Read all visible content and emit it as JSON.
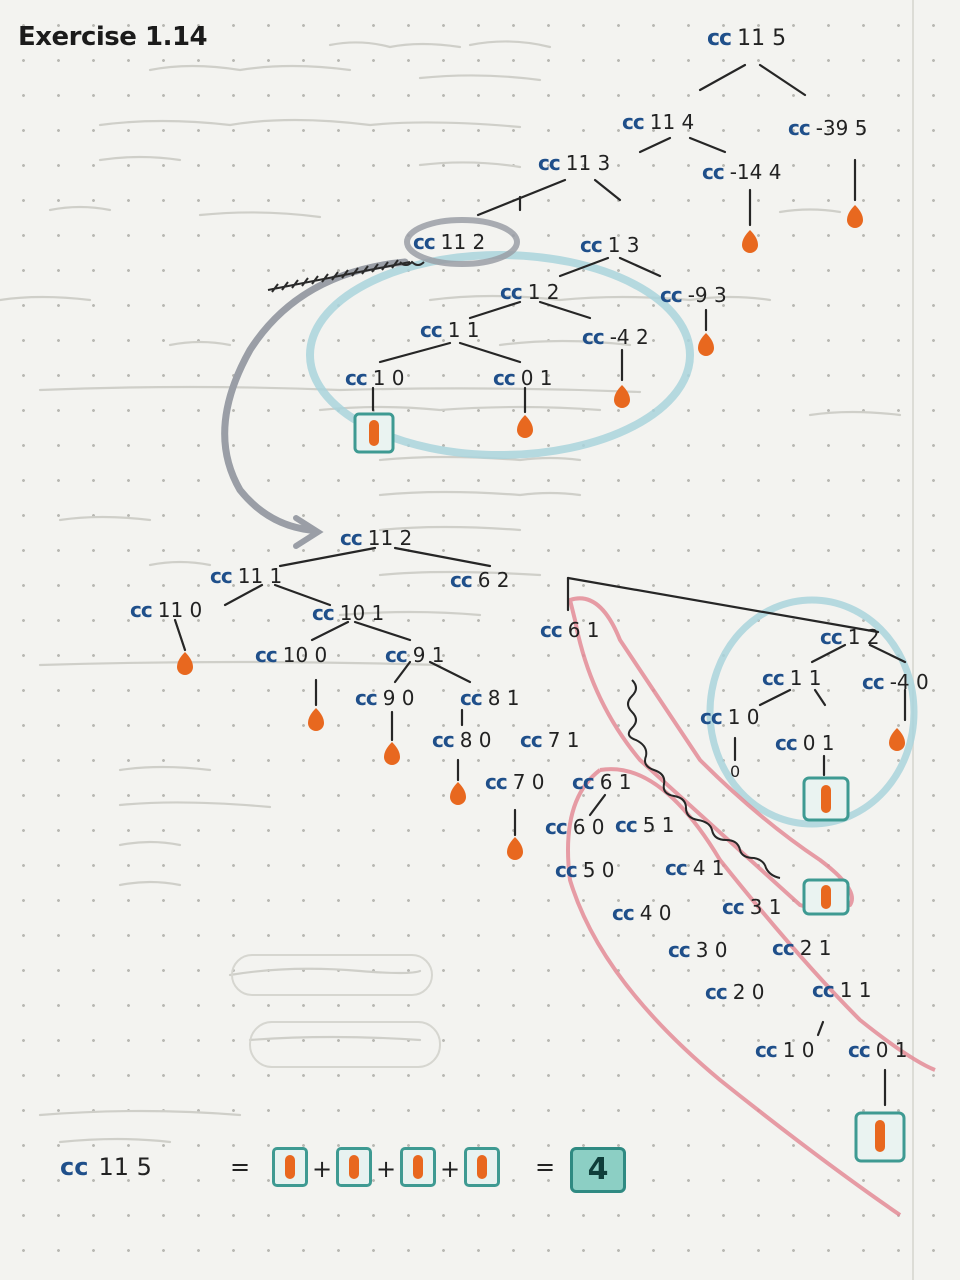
{
  "heading": "Exercise 1.14",
  "nodes": {
    "n_cc115": {
      "fn": "cc",
      "args": "11  5"
    },
    "n_cc114": {
      "fn": "cc",
      "args": "11  4"
    },
    "n_cc395": {
      "fn": "cc",
      "args": "-39  5"
    },
    "n_cc113": {
      "fn": "cc",
      "args": "11  3"
    },
    "n_cc144": {
      "fn": "cc",
      "args": "-14  4"
    },
    "n_cc112a": {
      "fn": "cc",
      "args": "11  2"
    },
    "n_cc13": {
      "fn": "cc",
      "args": "1  3"
    },
    "n_cc12": {
      "fn": "cc",
      "args": "1  2"
    },
    "n_cc93": {
      "fn": "cc",
      "args": "-9  3"
    },
    "n_cc11a": {
      "fn": "cc",
      "args": "1  1"
    },
    "n_cc42": {
      "fn": "cc",
      "args": "-4  2"
    },
    "n_cc10a": {
      "fn": "cc",
      "args": "1  0"
    },
    "n_cc01a": {
      "fn": "cc",
      "args": "0  1"
    },
    "n_cc112b": {
      "fn": "cc",
      "args": "11  2"
    },
    "n_cc111": {
      "fn": "cc",
      "args": "11  1"
    },
    "n_cc62": {
      "fn": "cc",
      "args": "6  2"
    },
    "n_cc110": {
      "fn": "cc",
      "args": "11  0"
    },
    "n_cc101": {
      "fn": "cc",
      "args": "10  1"
    },
    "n_cc61": {
      "fn": "cc",
      "args": "6  1"
    },
    "n_cc12b": {
      "fn": "cc",
      "args": "1  2"
    },
    "n_cc100": {
      "fn": "cc",
      "args": "10  0"
    },
    "n_cc91": {
      "fn": "cc",
      "args": "9  1"
    },
    "n_cc11b": {
      "fn": "cc",
      "args": "1  1"
    },
    "n_cc40": {
      "fn": "cc",
      "args": "-4  0"
    },
    "n_cc90": {
      "fn": "cc",
      "args": "9  0"
    },
    "n_cc81": {
      "fn": "cc",
      "args": "8  1"
    },
    "n_cc10b": {
      "fn": "cc",
      "args": "1  0"
    },
    "n_cc01b": {
      "fn": "cc",
      "args": "0  1"
    },
    "n_cc80": {
      "fn": "cc",
      "args": "8  0"
    },
    "n_cc71": {
      "fn": "cc",
      "args": "7  1"
    },
    "n_cc70": {
      "fn": "cc",
      "args": "7  0"
    },
    "n_cc61b": {
      "fn": "cc",
      "args": "6  1"
    },
    "n_cc60": {
      "fn": "cc",
      "args": "6  0"
    },
    "n_cc51": {
      "fn": "cc",
      "args": "5  1"
    },
    "n_cc50": {
      "fn": "cc",
      "args": "5  0"
    },
    "n_cc41": {
      "fn": "cc",
      "args": "4  1"
    },
    "n_cc40b": {
      "fn": "cc",
      "args": "4  0"
    },
    "n_cc31": {
      "fn": "cc",
      "args": "3  1"
    },
    "n_cc30": {
      "fn": "cc",
      "args": "3  0"
    },
    "n_cc21": {
      "fn": "cc",
      "args": "2  1"
    },
    "n_cc20": {
      "fn": "cc",
      "args": "2  0"
    },
    "n_cc11c": {
      "fn": "cc",
      "args": "1  1"
    },
    "n_cc10c": {
      "fn": "cc",
      "args": "1  0"
    },
    "n_cc01c": {
      "fn": "cc",
      "args": "0  1"
    }
  },
  "small_zero": "0",
  "equation": {
    "lhs_fn": "cc",
    "lhs_args": "11  5",
    "equals": "=",
    "plus": "+",
    "result": "4"
  },
  "colors": {
    "ink": "#222222",
    "cc_blue": "#1f4f8a",
    "leaf_orange": "#e8681f",
    "box_teal": "#3e9a92",
    "circle_blue": "#a9d4dc",
    "loop_red": "#e38b96",
    "arrow_gray": "#9a9ea6"
  }
}
